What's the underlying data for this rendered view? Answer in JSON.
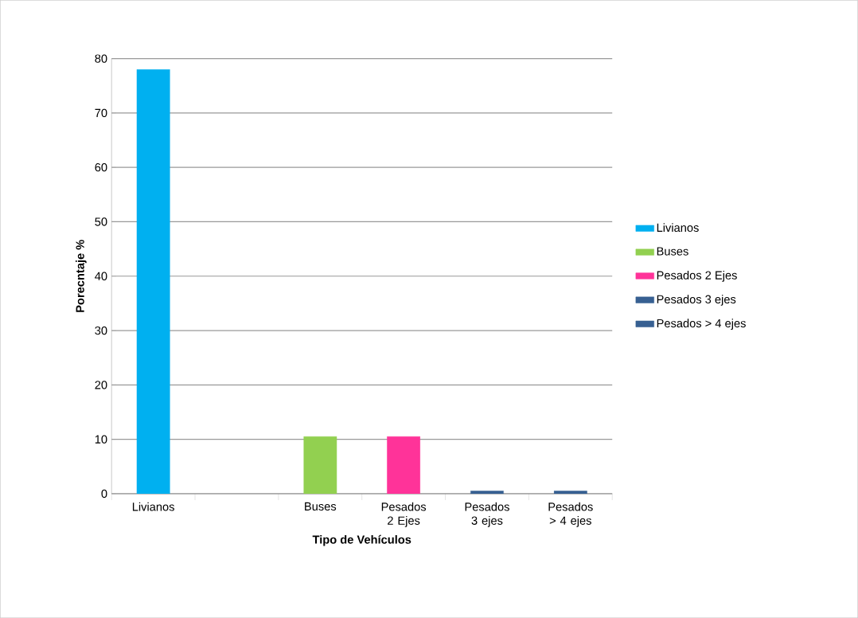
{
  "chart_data": {
    "type": "bar",
    "xlabel": "Tipo de Vehículos",
    "ylabel": "Porecntaje %",
    "categories": [
      "Livianos",
      null,
      "Buses",
      "Pesados 2 Ejes",
      "Pesados 3 ejes",
      "Pesados > 4 ejes"
    ],
    "series": [
      {
        "name": "Livianos",
        "color": "#00b0f0",
        "values": [
          78,
          null,
          null,
          null,
          null,
          null
        ]
      },
      {
        "name": "Buses",
        "color": "#92d050",
        "values": [
          null,
          null,
          10.5,
          null,
          null,
          null
        ]
      },
      {
        "name": "Pesados 2 Ejes",
        "color": "#ff3399",
        "values": [
          null,
          null,
          null,
          10.5,
          null,
          null
        ]
      },
      {
        "name": "Pesados 3 ejes",
        "color": "#376092",
        "values": [
          null,
          null,
          null,
          null,
          0.5,
          null
        ]
      },
      {
        "name": "Pesados > 4 ejes",
        "color": "#376092",
        "values": [
          null,
          null,
          null,
          null,
          null,
          0.5
        ]
      }
    ],
    "ylim": [
      0,
      80
    ],
    "yticks": [
      0,
      10,
      20,
      30,
      40,
      50,
      60,
      70,
      80
    ],
    "grid": "y",
    "legend": "right"
  }
}
